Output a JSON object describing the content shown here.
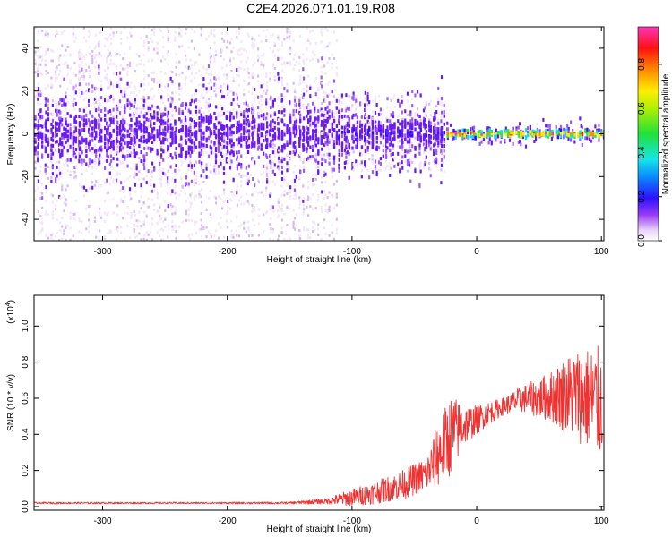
{
  "title": "C2E4.2026.071.01.19.R08",
  "colors": {
    "snr_line": "#ee3333",
    "spectrum_palette": [
      "#f3e6fb",
      "#d9b8f5",
      "#a05cf0",
      "#6a1bf0",
      "#3410ff",
      "#12e0f0",
      "#40e040",
      "#ffee00",
      "#ff8800",
      "#ff1111",
      "#ff33cc"
    ]
  },
  "chart_data": [
    {
      "type": "heatmap",
      "xlabel": "Height of straight line (km)",
      "ylabel": "Frequency (Hz)",
      "xlim": [
        -355,
        102
      ],
      "ylim": [
        -50,
        50
      ],
      "x_ticks": [
        -300,
        -200,
        -100,
        0,
        100
      ],
      "x_tick_labels": [
        "-300",
        "-200",
        "-100",
        "0",
        "100"
      ],
      "y_ticks": [
        -40,
        -20,
        0,
        20,
        40
      ],
      "y_tick_labels": [
        "-40",
        "-20",
        "0",
        "20",
        "40"
      ],
      "colorbar": {
        "label": "Normalized spectral amplitude",
        "range": [
          0,
          0.97
        ],
        "ticks": [
          0.0,
          0.2,
          0.4,
          0.6,
          0.8
        ],
        "tick_labels": [
          "0.0",
          "0.2",
          "0.4",
          "0.6",
          "0.8"
        ]
      },
      "regions": [
        {
          "x_range": [
            -355,
            -112
          ],
          "y_spread_hz": 50,
          "core_half_width_hz": 8,
          "core_amplitude": 0.15
        },
        {
          "x_range": [
            -112,
            -25
          ],
          "y_spread_hz": 18,
          "core_half_width_hz": 6,
          "core_amplitude": 0.25
        },
        {
          "x_range": [
            -25,
            102
          ],
          "y_spread_hz": 3,
          "core_half_width_hz": 1.5,
          "core_amplitude": 0.9
        }
      ]
    },
    {
      "type": "line",
      "xlabel": "Height of straight line (km)",
      "ylabel": "SNR (10 * v/v)",
      "y_multiplier_label": "(x10",
      "y_multiplier_exponent": "4",
      "y_multiplier_close": ")",
      "xlim": [
        -355,
        102
      ],
      "ylim": [
        -0.02,
        1.17
      ],
      "x_ticks": [
        -300,
        -200,
        -100,
        0,
        100
      ],
      "x_tick_labels": [
        "-300",
        "-200",
        "-100",
        "0",
        "100"
      ],
      "y_ticks": [
        0.0,
        0.2,
        0.4,
        0.6,
        0.8,
        1.0
      ],
      "y_tick_labels": [
        "0.0",
        "0.2",
        "0.4",
        "0.6",
        "0.8",
        "1.0"
      ],
      "series": [
        {
          "x": [
            -355,
            -300,
            -250,
            -200,
            -150,
            -120,
            -100,
            -80,
            -60,
            -40,
            -30,
            -20,
            -10,
            0,
            10,
            20,
            30,
            40,
            50,
            60,
            70,
            80,
            90,
            100
          ],
          "y": [
            0.02,
            0.02,
            0.02,
            0.02,
            0.02,
            0.03,
            0.05,
            0.08,
            0.12,
            0.18,
            0.3,
            0.4,
            0.45,
            0.48,
            0.52,
            0.55,
            0.58,
            0.6,
            0.6,
            0.61,
            0.62,
            0.62,
            0.6,
            0.57
          ],
          "y_noise": [
            0.003,
            0.003,
            0.003,
            0.003,
            0.004,
            0.01,
            0.03,
            0.04,
            0.05,
            0.06,
            0.12,
            0.14,
            0.07,
            0.05,
            0.04,
            0.03,
            0.04,
            0.05,
            0.07,
            0.09,
            0.13,
            0.16,
            0.18,
            0.2
          ]
        }
      ]
    }
  ]
}
